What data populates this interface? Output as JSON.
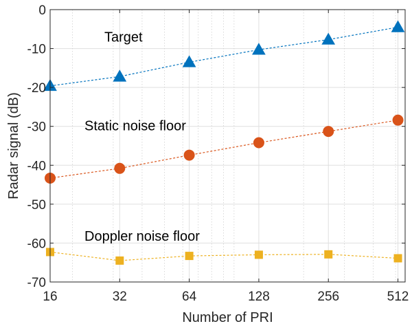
{
  "chart_data": {
    "type": "line",
    "title": "",
    "xlabel": "Number of PRI",
    "ylabel": "Radar signal (dB)",
    "x_scale": "log2",
    "x": [
      16,
      32,
      64,
      128,
      256,
      512
    ],
    "x_ticks": [
      "16",
      "32",
      "64",
      "128",
      "256",
      "512"
    ],
    "xlim": [
      16,
      550
    ],
    "ylim": [
      -70,
      0
    ],
    "y_ticks": [
      "0",
      "-10",
      "-20",
      "-30",
      "-40",
      "-50",
      "-60",
      "-70"
    ],
    "grid": true,
    "legend": "none",
    "series": [
      {
        "name": "Target",
        "values": [
          -19.6,
          -17.2,
          -13.5,
          -10.3,
          -7.7,
          -4.5
        ],
        "color": "#0072BD",
        "marker": "triangle",
        "line_style": "dashed"
      },
      {
        "name": "Static noise floor",
        "values": [
          -43.3,
          -40.8,
          -37.4,
          -34.2,
          -31.3,
          -28.4
        ],
        "color": "#D95319",
        "marker": "circle",
        "line_style": "dashed"
      },
      {
        "name": "Doppler noise floor",
        "values": [
          -62.3,
          -64.5,
          -63.3,
          -63.0,
          -62.9,
          -63.9
        ],
        "color": "#EDB120",
        "marker": "square",
        "line_style": "dashed"
      }
    ]
  }
}
